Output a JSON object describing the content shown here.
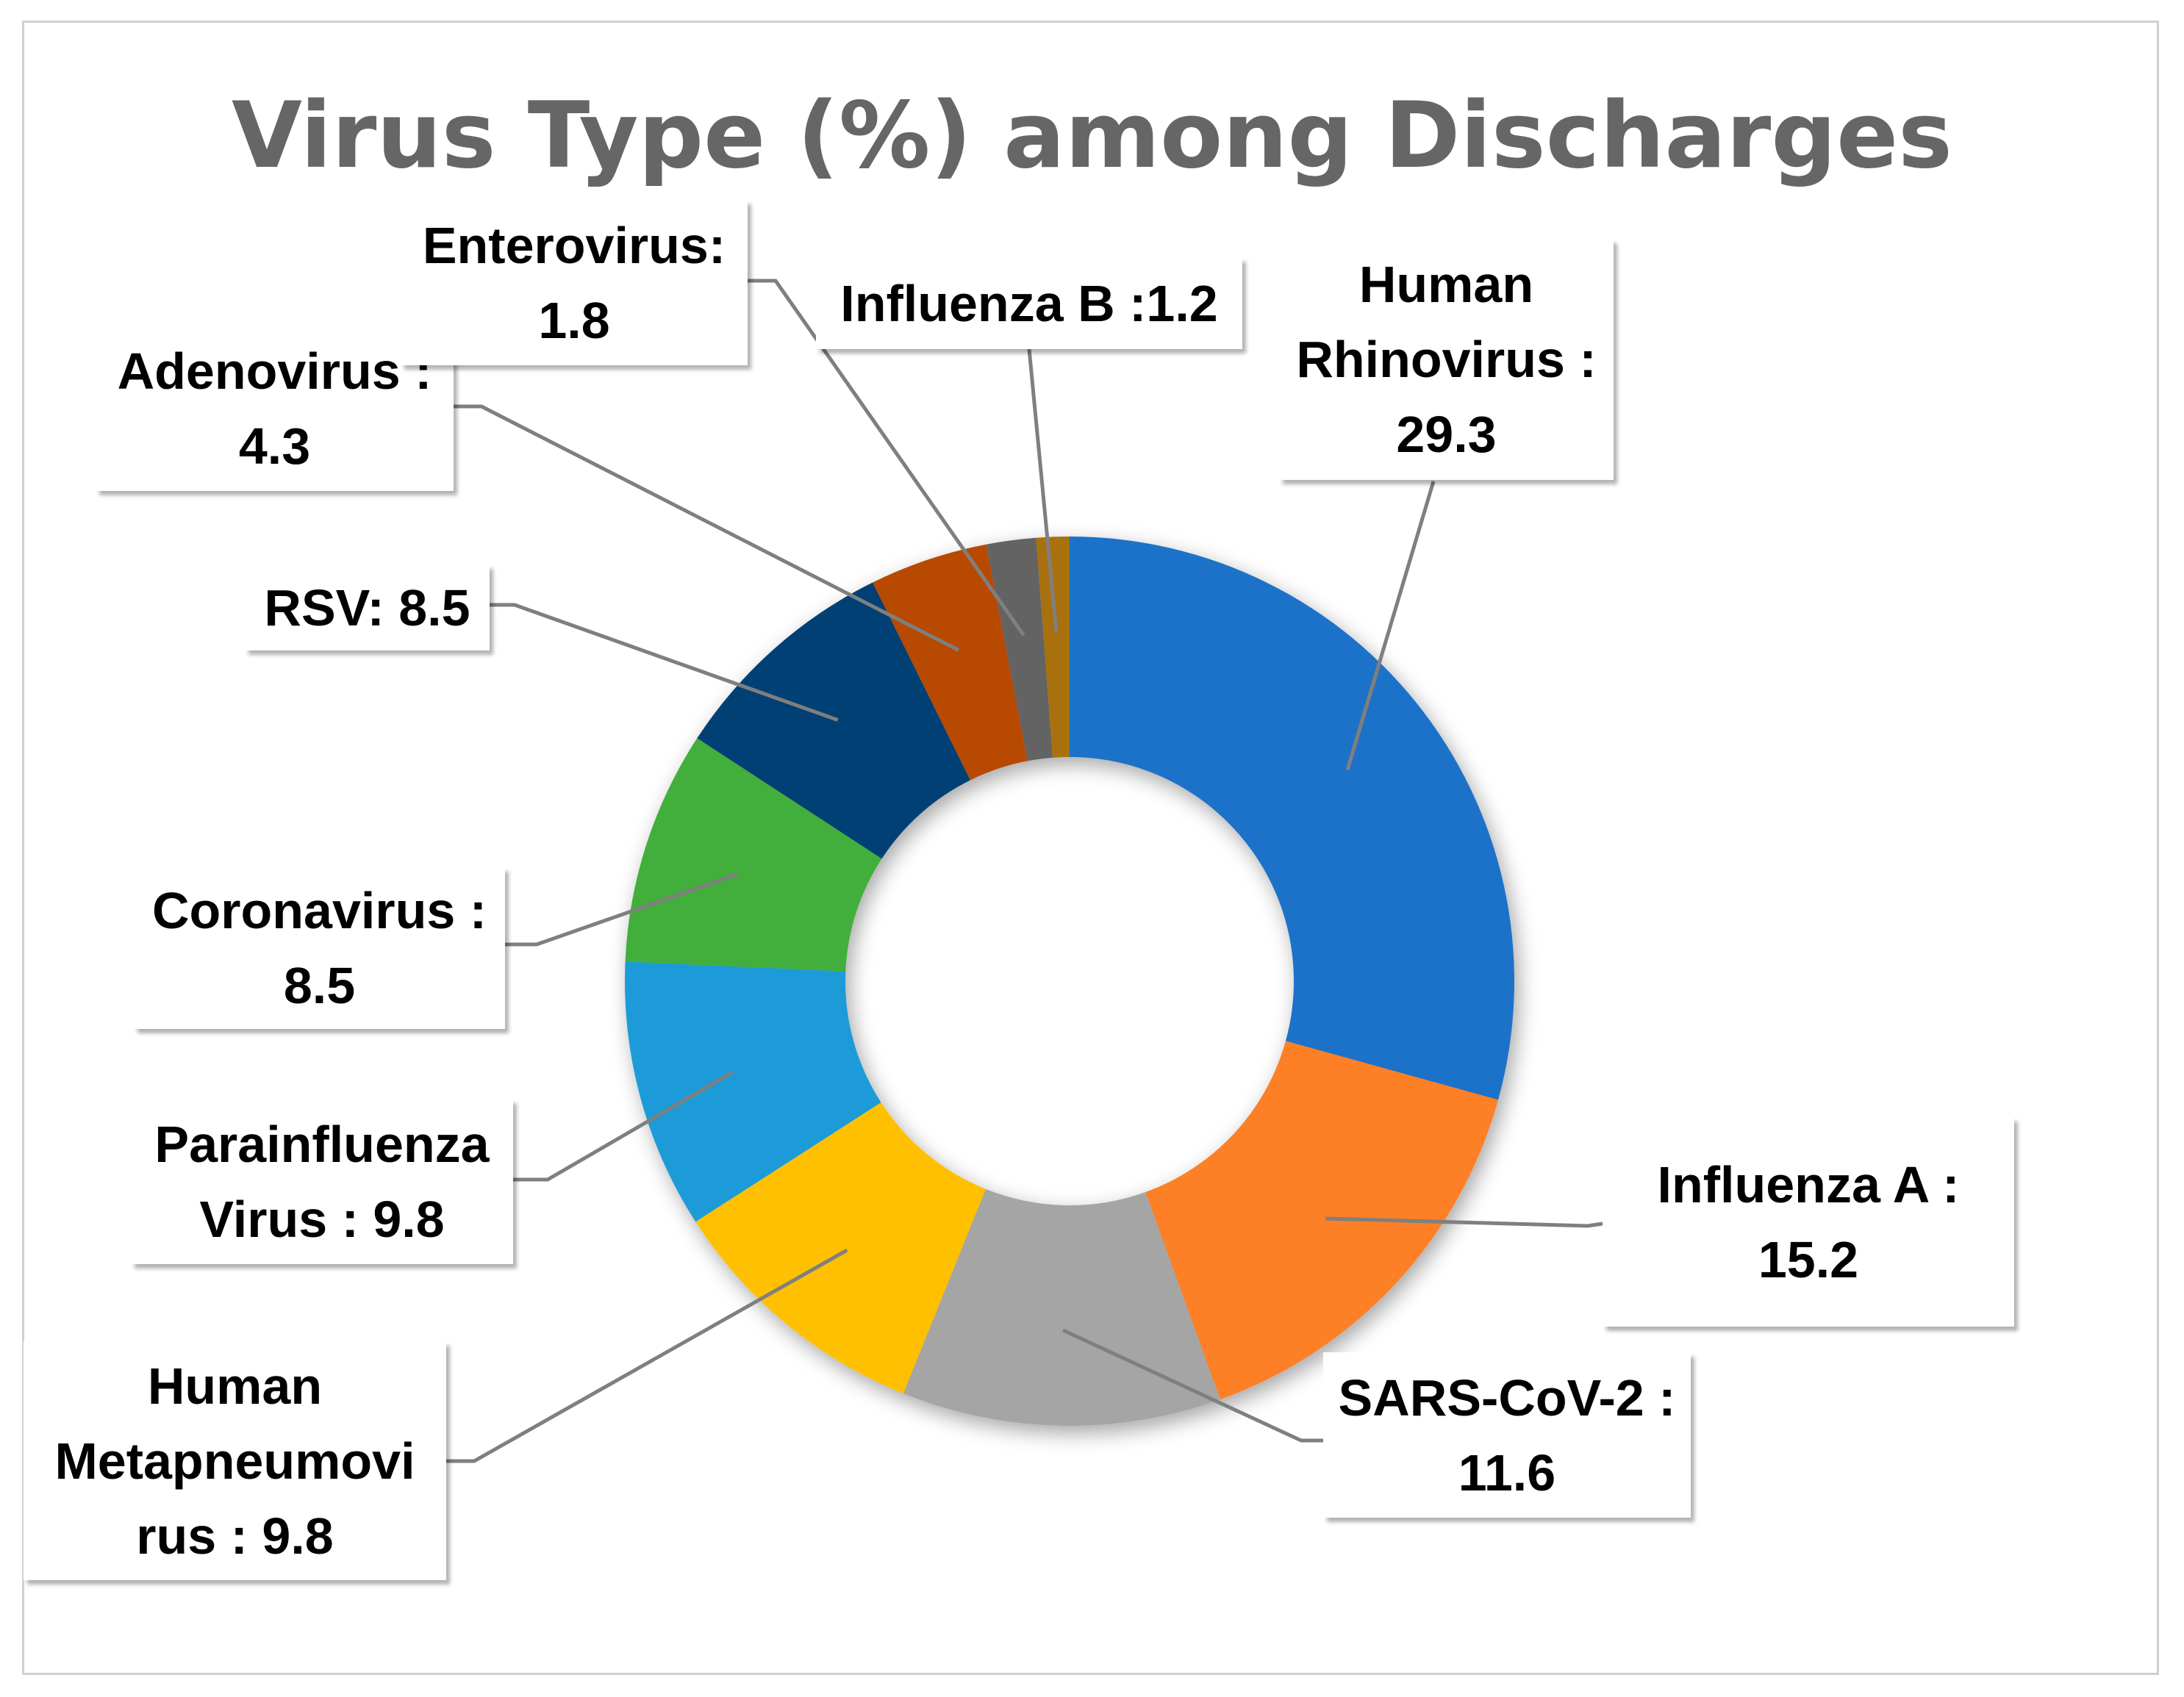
{
  "chart_data": {
    "type": "pie",
    "title": "Virus Type (%) among Discharges",
    "categories": [
      "Human Rhinovirus",
      "Influenza A",
      "SARS-CoV-2",
      "Human Metapneumovirus",
      "Parainfluenza Virus",
      "Coronavirus",
      "RSV",
      "Adenovirus",
      "Enterovirus",
      "Influenza B"
    ],
    "values": [
      29.3,
      15.2,
      11.6,
      9.8,
      9.8,
      8.5,
      8.5,
      4.3,
      1.8,
      1.2
    ],
    "colors": [
      "#1f72c8",
      "#fd7f28",
      "#a5a5a5",
      "#fec000",
      "#1e9bd8",
      "#43ae3b",
      "#044174",
      "#b84804",
      "#646464",
      "#a8710f"
    ],
    "data_labels": [
      [
        "Human",
        "Rhinovirus :",
        "29.3"
      ],
      [
        "Influenza A :",
        "15.2"
      ],
      [
        "SARS-CoV-2 :",
        "11.6"
      ],
      [
        "Human",
        "Metapneumovi",
        "rus : 9.8"
      ],
      [
        "Parainfluenza",
        "Virus : 9.8"
      ],
      [
        "Coronavirus :",
        "8.5"
      ],
      [
        "RSV: 8.5"
      ],
      [
        "Adenovirus :",
        "4.3"
      ],
      [
        "Enterovirus:",
        "1.8"
      ],
      [
        "Influenza B :1.2"
      ]
    ],
    "hole": "donut",
    "legend": "none"
  }
}
